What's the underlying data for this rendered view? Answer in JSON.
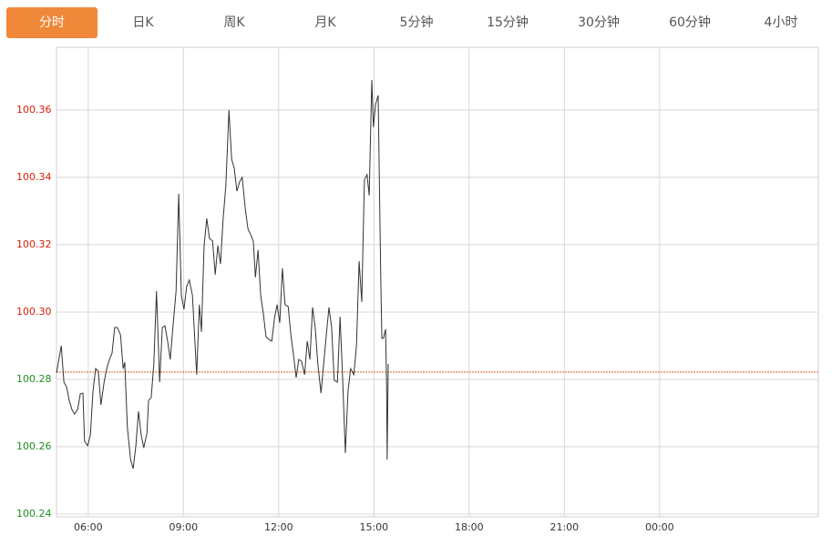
{
  "tabs": [
    "分时",
    "日K",
    "周K",
    "月K",
    "5分钟",
    "15分钟",
    "30分钟",
    "60分钟",
    "4小时"
  ],
  "active_tab": 0,
  "chart_data": {
    "type": "line",
    "color": "#333333",
    "reference_line": 100.2822,
    "reference_color": "#e0622a",
    "up_color": "#d81e06",
    "down_color": "#1f8f1f",
    "grid": true,
    "xlim": [
      300,
      1740
    ],
    "ylim": [
      100.2392,
      100.3786
    ],
    "xticks": [
      {
        "value": 360,
        "label": "06:00"
      },
      {
        "value": 540,
        "label": "09:00"
      },
      {
        "value": 720,
        "label": "12:00"
      },
      {
        "value": 900,
        "label": "15:00"
      },
      {
        "value": 1080,
        "label": "18:00"
      },
      {
        "value": 1260,
        "label": "21:00"
      },
      {
        "value": 1440,
        "label": "00:00"
      }
    ],
    "yticks": [
      100.36,
      100.34,
      100.32,
      {
        "value": 100.3,
        "label": "100.30"
      },
      100.28,
      100.26,
      100.24
    ],
    "x": [
      300,
      309,
      314,
      319,
      324,
      329,
      334,
      340,
      345,
      350,
      353,
      359,
      364,
      369,
      374,
      379,
      384,
      390,
      395,
      400,
      405,
      410,
      415,
      421,
      426,
      429,
      434,
      440,
      445,
      450,
      455,
      460,
      465,
      471,
      474,
      479,
      484,
      489,
      495,
      500,
      505,
      510,
      515,
      520,
      526,
      531,
      536,
      541,
      546,
      551,
      557,
      562,
      565,
      570,
      574,
      579,
      584,
      589,
      595,
      600,
      605,
      610,
      615,
      620,
      626,
      631,
      636,
      641,
      646,
      651,
      657,
      662,
      667,
      672,
      676,
      681,
      686,
      691,
      696,
      701,
      707,
      712,
      717,
      722,
      727,
      732,
      738,
      743,
      748,
      753,
      758,
      763,
      769,
      774,
      779,
      784,
      789,
      794,
      800,
      805,
      810,
      815,
      820,
      825,
      831,
      836,
      841,
      846,
      851,
      856,
      862,
      867,
      872,
      877,
      882,
      887,
      891,
      896,
      899,
      903,
      908,
      913,
      915,
      918,
      922,
      924,
      925,
      927
    ],
    "values": [
      100.2819,
      100.29,
      100.2792,
      100.2778,
      100.2738,
      100.2711,
      100.2697,
      100.2711,
      100.2757,
      100.2759,
      100.2616,
      100.2603,
      100.2635,
      100.2765,
      100.2832,
      100.2824,
      100.2724,
      100.2792,
      100.2832,
      100.2859,
      100.2878,
      100.2954,
      100.2954,
      100.2932,
      100.2832,
      100.2851,
      100.2657,
      100.2562,
      100.2535,
      100.2603,
      100.2705,
      100.2635,
      100.2597,
      100.2641,
      100.2738,
      100.2746,
      100.2846,
      100.3062,
      100.2792,
      100.2954,
      100.2959,
      100.2914,
      100.2859,
      100.2954,
      100.3062,
      100.3351,
      100.3049,
      100.3008,
      100.3076,
      100.3095,
      100.3049,
      100.29,
      100.2814,
      100.3022,
      100.2941,
      100.3197,
      100.3278,
      100.3219,
      100.3211,
      100.3111,
      100.3197,
      100.3143,
      100.3278,
      100.3373,
      100.36,
      100.3454,
      100.3427,
      100.3359,
      100.3386,
      100.34,
      100.3305,
      100.3246,
      100.323,
      100.3211,
      100.3103,
      100.3184,
      100.3049,
      100.2995,
      100.2927,
      100.2919,
      100.2914,
      100.2981,
      100.3022,
      100.2968,
      100.313,
      100.3022,
      100.3016,
      100.2932,
      100.2873,
      100.2805,
      100.2859,
      100.2854,
      100.2814,
      100.2914,
      100.2859,
      100.3014,
      100.2954,
      100.2846,
      100.2759,
      100.2846,
      100.2932,
      100.3014,
      100.2954,
      100.2797,
      100.2792,
      100.2986,
      100.2797,
      100.2581,
      100.2765,
      100.2832,
      100.2814,
      100.29,
      100.3151,
      100.303,
      100.3392,
      100.3408,
      100.3346,
      100.3689,
      100.3549,
      100.3616,
      100.3643,
      100.3089,
      100.2922,
      100.2922,
      100.2949,
      100.2778,
      100.2562,
      100.2846
    ]
  }
}
